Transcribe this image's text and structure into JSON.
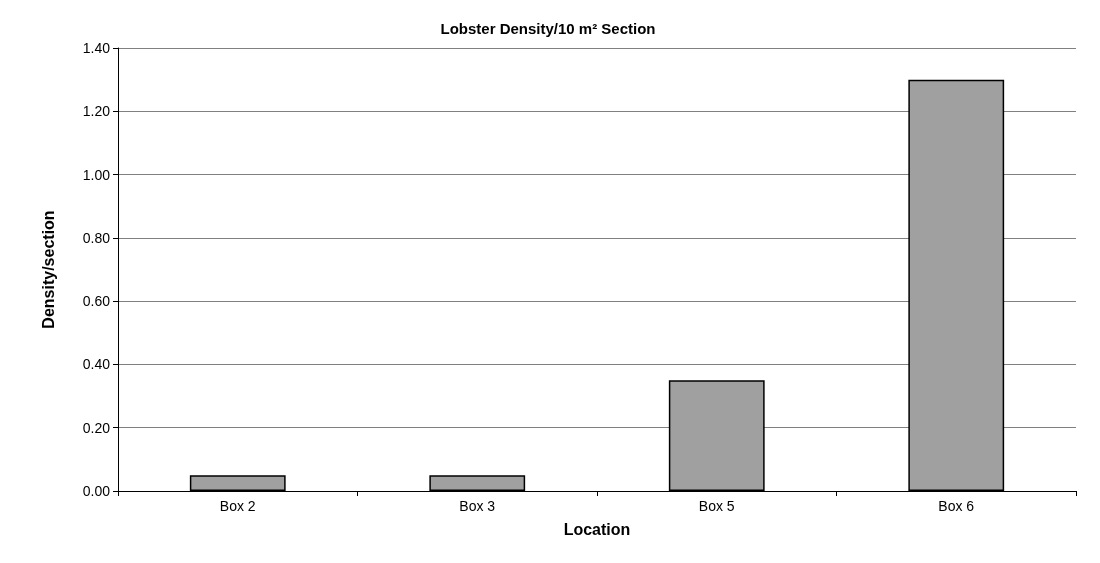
{
  "chart_data": {
    "type": "bar",
    "title": "Lobster Density/10 m² Section",
    "xlabel": "Location",
    "ylabel": "Density/section",
    "categories": [
      "Box 2",
      "Box 3",
      "Box 5",
      "Box 6"
    ],
    "values": [
      0.05,
      0.05,
      0.35,
      1.3
    ],
    "color": "#a0a0a0",
    "ylim": [
      0,
      1.4
    ],
    "yticks": [
      {
        "value": 0,
        "label": "0.00"
      },
      {
        "value": 0.2,
        "label": "0.20"
      },
      {
        "value": 0.4,
        "label": "0.40"
      },
      {
        "value": 0.6,
        "label": "0.60"
      },
      {
        "value": 0.8,
        "label": "0.80"
      },
      {
        "value": 1.0,
        "label": "1.00"
      },
      {
        "value": 1.2,
        "label": "1.20"
      },
      {
        "value": 1.4,
        "label": "1.40"
      }
    ],
    "grid": "y"
  }
}
